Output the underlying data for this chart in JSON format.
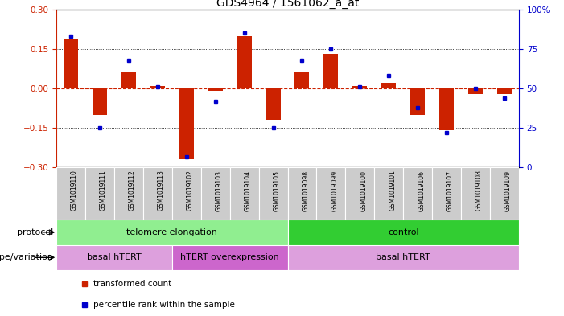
{
  "title": "GDS4964 / 1561062_a_at",
  "samples": [
    "GSM1019110",
    "GSM1019111",
    "GSM1019112",
    "GSM1019113",
    "GSM1019102",
    "GSM1019103",
    "GSM1019104",
    "GSM1019105",
    "GSM1019098",
    "GSM1019099",
    "GSM1019100",
    "GSM1019101",
    "GSM1019106",
    "GSM1019107",
    "GSM1019108",
    "GSM1019109"
  ],
  "red_bars": [
    0.19,
    -0.1,
    0.06,
    0.01,
    -0.27,
    -0.01,
    0.2,
    -0.12,
    0.06,
    0.13,
    0.01,
    0.02,
    -0.1,
    -0.16,
    -0.02,
    -0.02
  ],
  "blue_dots_pct": [
    83,
    25,
    68,
    51,
    7,
    42,
    85,
    25,
    68,
    75,
    51,
    58,
    38,
    22,
    50,
    44
  ],
  "ylim": [
    -0.3,
    0.3
  ],
  "yticks_left": [
    -0.3,
    -0.15,
    0.0,
    0.15,
    0.3
  ],
  "yticks_right": [
    0,
    25,
    50,
    75,
    100
  ],
  "protocol_segments": [
    {
      "text": "telomere elongation",
      "start": 0,
      "end": 8,
      "color": "#90ee90"
    },
    {
      "text": "control",
      "start": 8,
      "end": 16,
      "color": "#32cd32"
    }
  ],
  "genotype_segments": [
    {
      "text": "basal hTERT",
      "start": 0,
      "end": 4,
      "color": "#dda0dd"
    },
    {
      "text": "hTERT overexpression",
      "start": 4,
      "end": 8,
      "color": "#cc66cc"
    },
    {
      "text": "basal hTERT",
      "start": 8,
      "end": 16,
      "color": "#dda0dd"
    }
  ],
  "protocol_row_label": "protocol",
  "genotype_row_label": "genotype/variation",
  "legend_red": "transformed count",
  "legend_blue": "percentile rank within the sample",
  "bar_color": "#cc2200",
  "dot_color": "#0000cc",
  "zero_line_color": "#cc2200",
  "grid_line_color": "#000000",
  "background_color": "#ffffff",
  "sample_box_color": "#cccccc"
}
